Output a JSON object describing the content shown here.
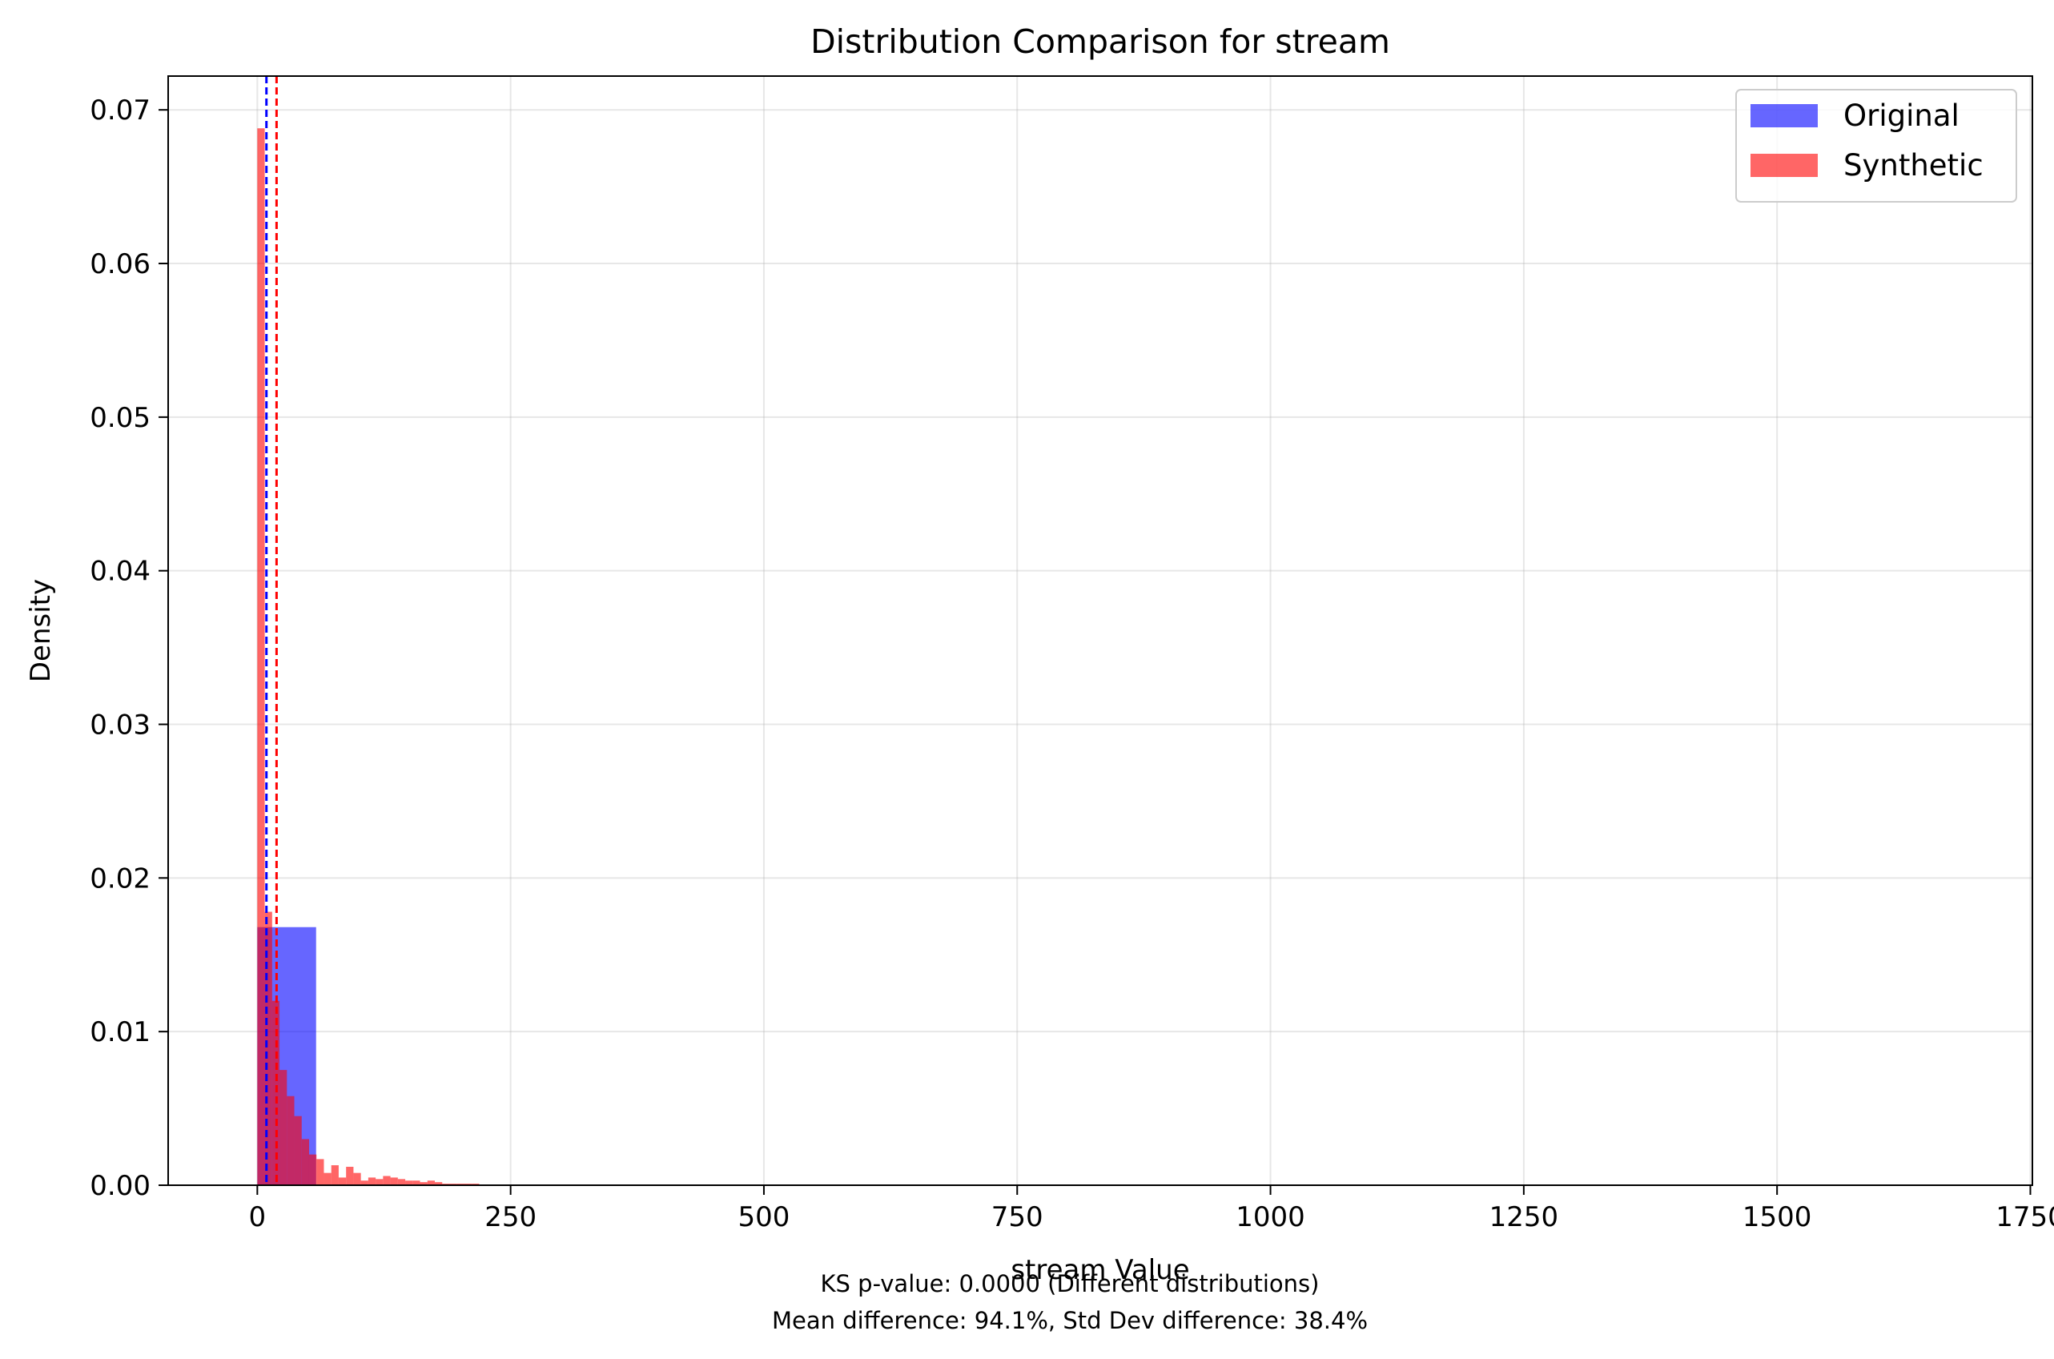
{
  "chart_data": {
    "type": "bar",
    "title": "Distribution Comparison for stream",
    "xlabel": "stream Value",
    "ylabel": "Density",
    "xlim": [
      -88,
      1752
    ],
    "ylim": [
      0,
      0.0722
    ],
    "xticks": [
      0,
      250,
      500,
      750,
      1000,
      1250,
      1500,
      1750
    ],
    "yticks": [
      0.0,
      0.01,
      0.02,
      0.03,
      0.04,
      0.05,
      0.06,
      0.07
    ],
    "ytick_labels": [
      "0.00",
      "0.01",
      "0.02",
      "0.03",
      "0.04",
      "0.05",
      "0.06",
      "0.07"
    ],
    "grid": true,
    "legend_position": "top-right",
    "series": [
      {
        "name": "Original",
        "color": "#0000ff",
        "alpha": 0.6,
        "bin_edges": [
          0,
          58
        ],
        "values": [
          0.0168
        ],
        "mean_line": 9
      },
      {
        "name": "Synthetic",
        "color": "#ff0000",
        "alpha": 0.6,
        "bin_edges": [
          0,
          7.3,
          14.6,
          21.9,
          29.2,
          36.5,
          43.8,
          51.1,
          58.4,
          65.7,
          73.0,
          80.3,
          87.6,
          94.9,
          102.2,
          109.5,
          116.8,
          124.1,
          131.4,
          138.7,
          146.0,
          153.3,
          160.6,
          167.9,
          175.2,
          182.5,
          189.8,
          197.1,
          204.4,
          211.7,
          219.0
        ],
        "values": [
          0.0688,
          0.0178,
          0.012,
          0.0075,
          0.0058,
          0.0045,
          0.003,
          0.002,
          0.0017,
          0.0008,
          0.0013,
          0.0005,
          0.0012,
          0.0008,
          0.0003,
          0.0005,
          0.0004,
          0.0006,
          0.0005,
          0.0004,
          0.0003,
          0.0003,
          0.0002,
          0.0003,
          0.0002,
          0.0001,
          0.0001,
          0.0001,
          0.0001,
          0.0001
        ],
        "mean_line": 19
      }
    ],
    "annotation_lines": [
      "KS p-value: 0.0000 (Different distributions)",
      "Mean difference: 94.1%, Std Dev difference: 38.4%"
    ]
  }
}
